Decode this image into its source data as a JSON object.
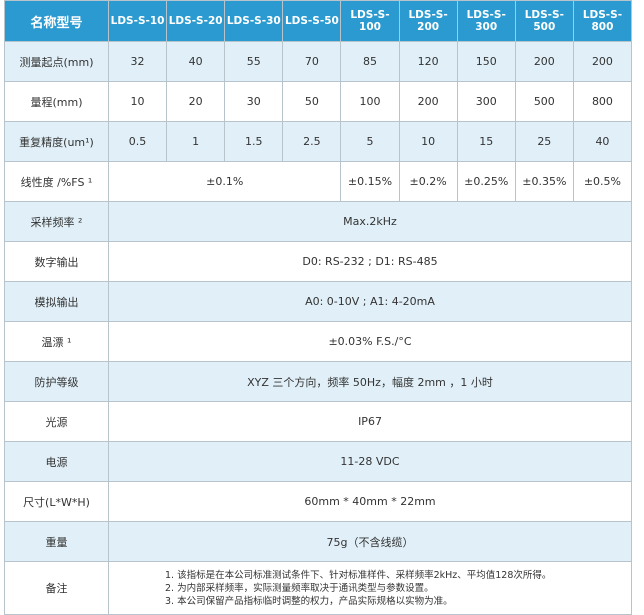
{
  "header": {
    "label": "名称型号",
    "models": [
      "LDS-S-10",
      "LDS-S-20",
      "LDS-S-30",
      "LDS-S-50",
      "LDS-S-100",
      "LDS-S-200",
      "LDS-S-300",
      "LDS-S-500",
      "LDS-S-800"
    ]
  },
  "rows": {
    "start": {
      "label": "测量起点(mm)",
      "values": [
        "32",
        "40",
        "55",
        "70",
        "85",
        "120",
        "150",
        "200",
        "200"
      ]
    },
    "range": {
      "label": "量程(mm)",
      "values": [
        "10",
        "20",
        "30",
        "50",
        "100",
        "200",
        "300",
        "500",
        "800"
      ]
    },
    "repeat": {
      "label": "重复精度(um¹)",
      "values": [
        "0.5",
        "1",
        "1.5",
        "2.5",
        "5",
        "10",
        "15",
        "25",
        "40"
      ]
    },
    "linearity": {
      "label": "线性度 /%FS ¹",
      "values": [
        "±0.1%",
        "±0.15%",
        "±0.2%",
        "±0.25%",
        "±0.35%",
        "±0.5%"
      ]
    },
    "sampling": {
      "label": "采样频率 ²",
      "value": "Max.2kHz"
    },
    "digital": {
      "label": "数字输出",
      "value": "D0: RS-232 ; D1: RS-485"
    },
    "analog": {
      "label": "模拟输出",
      "value": "A0: 0-10V ; A1: 4-20mA"
    },
    "drift": {
      "label": "温漂 ¹",
      "value": "±0.03% F.S./°C"
    },
    "protection": {
      "label": "防护等级",
      "value": "XYZ 三个方向，频率 50Hz，幅度 2mm ，1 小时"
    },
    "light": {
      "label": "光源",
      "value": "IP67"
    },
    "power": {
      "label": "电源",
      "value": "11-28 VDC"
    },
    "size": {
      "label": "尺寸(L*W*H)",
      "value": "60mm * 40mm  * 22mm"
    },
    "weight": {
      "label": "重量",
      "value": "75g（不含线缆）"
    },
    "notes": {
      "label": "备注",
      "lines": [
        "1. 该指标是在本公司标准测试条件下、针对标准样件、采样频率2kHz、平均值128次所得。",
        "2. 为内部采样频率，实际测量频率取决于通讯类型与参数设置。",
        "3. 本公司保留产品指标临时调整的权力，产品实际规格以实物为准。"
      ]
    }
  },
  "colors": {
    "header": "#2b9ad0",
    "band": "#e1f0f8"
  }
}
